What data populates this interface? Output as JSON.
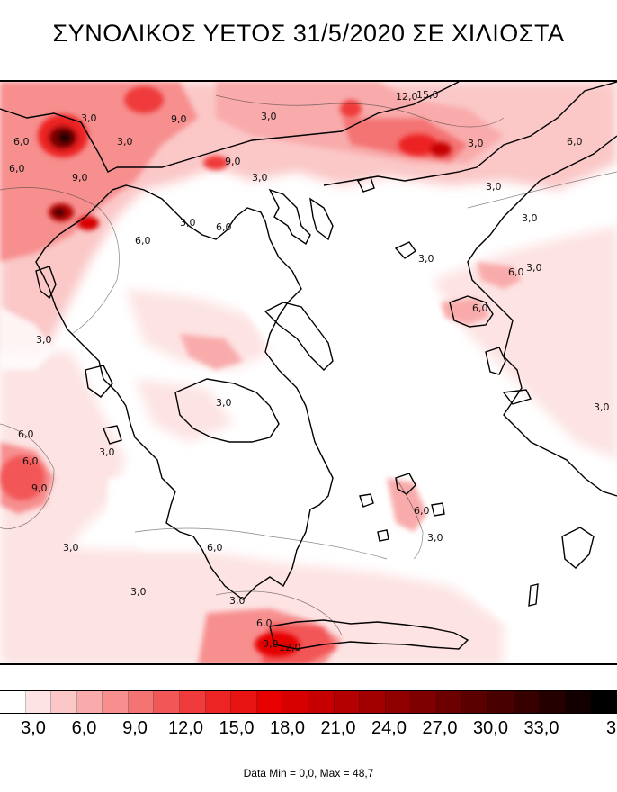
{
  "title": "ΣΥΝΟΛΙΚΟΣ ΥΕΤΟΣ 31/5/2020 ΣΕ ΧΙΛΙΟΣΤΑ",
  "map": {
    "contour_labels": [
      "3,0",
      "6,0",
      "9,0",
      "12,0",
      "15,0",
      "3,0",
      "6,0",
      "9,0",
      "3,0",
      "6,0",
      "3,0",
      "3,0",
      "6,0",
      "3,0",
      "6,0",
      "9,0",
      "3,0",
      "6,0",
      "3,0",
      "3,0",
      "6,0",
      "3,0",
      "3,0",
      "6,0",
      "3,0",
      "3,0",
      "3,0",
      "6,0",
      "9,0",
      "3,0",
      "6,0",
      "3,0",
      "6,0",
      "9,0",
      "12,0",
      "3,0",
      "6,0",
      "3,0"
    ]
  },
  "legend": {
    "colors": [
      "#ffffff",
      "#fde3e3",
      "#fbc7c7",
      "#f9abab",
      "#f78f8f",
      "#f47373",
      "#f25757",
      "#ef3b3b",
      "#ec2424",
      "#e81414",
      "#e60000",
      "#d70000",
      "#c60000",
      "#b40000",
      "#a20000",
      "#900000",
      "#7e0000",
      "#6c0000",
      "#5a0000",
      "#480000",
      "#360000",
      "#240000",
      "#120000",
      "#000000"
    ],
    "tick_labels": [
      "3,0",
      "6,0",
      "9,0",
      "12,0",
      "15,0",
      "18,0",
      "21,0",
      "24,0",
      "27,0",
      "30,0",
      "33,0",
      "3"
    ]
  },
  "data_info": "Data Min = 0,0, Max = 48,7"
}
